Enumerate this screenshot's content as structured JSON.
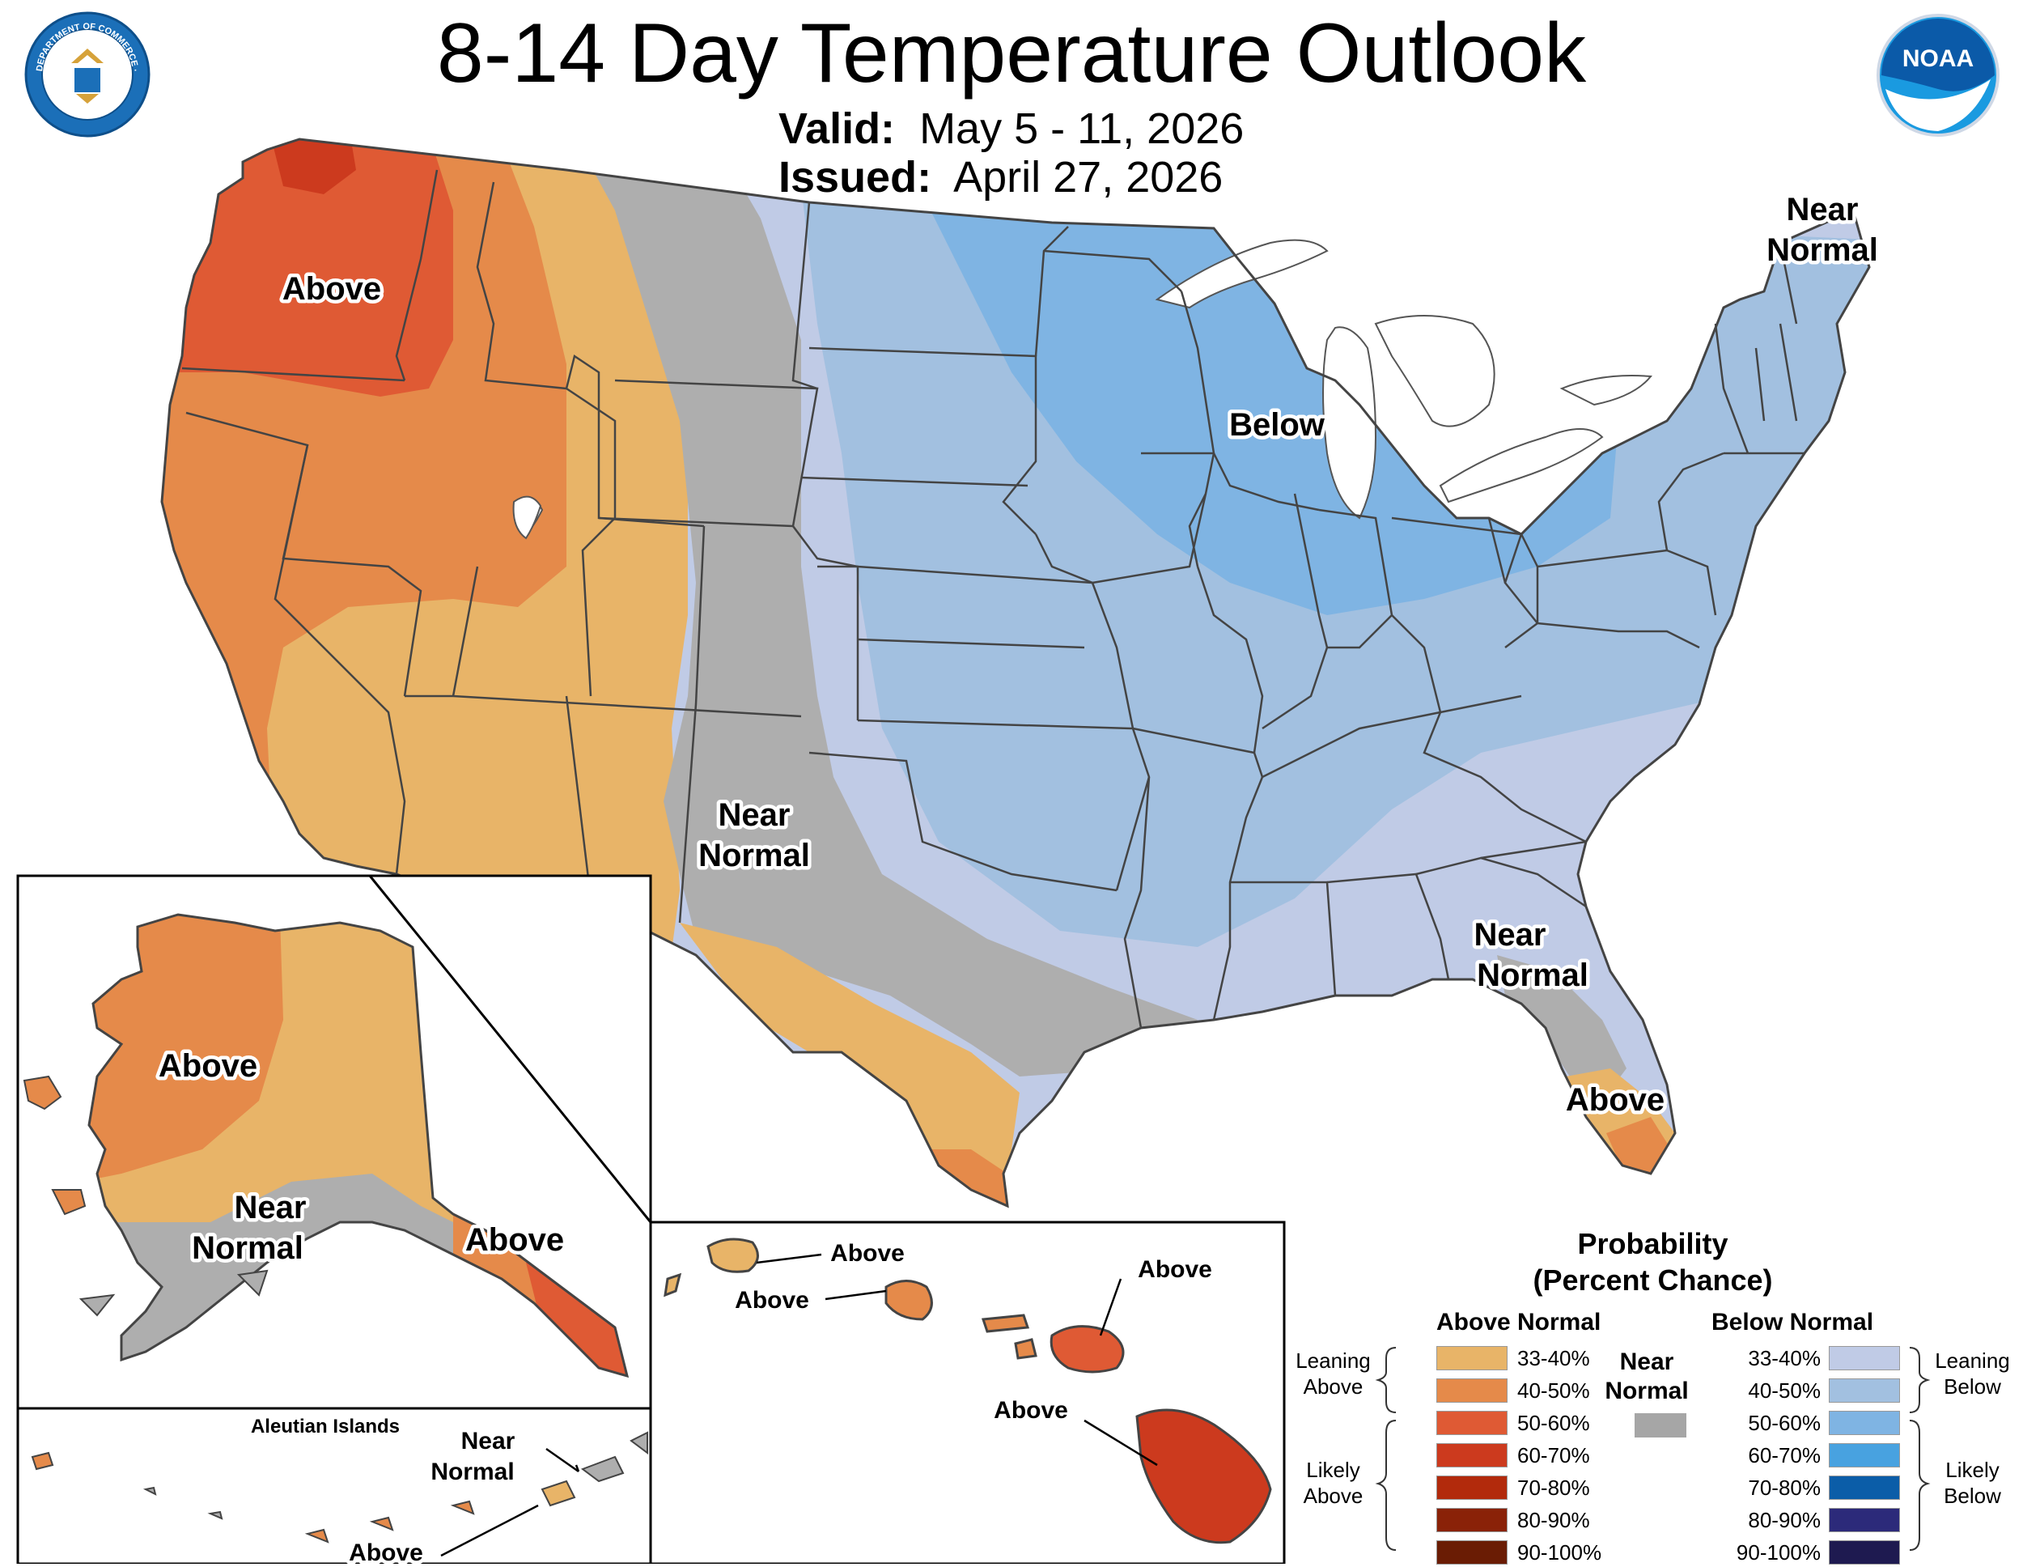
{
  "header": {
    "title": "8-14 Day Temperature Outlook",
    "valid_label": "Valid:",
    "valid_value": "May 5 - 11, 2026",
    "issued_label": "Issued:",
    "issued_value": "April 27, 2026"
  },
  "logos": {
    "commerce_seal_text": "DEPARTMENT OF COMMERCE · UNITED STATES OF AMERICA",
    "noaa_text": "NOAA"
  },
  "map_labels": {
    "above_northwest": "Above",
    "below_midwest": "Below",
    "near_normal_northeast": [
      "Near",
      "Normal"
    ],
    "near_normal_plains": [
      "Near",
      "Normal"
    ],
    "near_normal_southeast": [
      "Near",
      "Normal"
    ],
    "above_florida": "Above",
    "alaska_above_west": "Above",
    "alaska_near_normal": [
      "Near",
      "Normal"
    ],
    "alaska_above_southeast": "Above",
    "aleutian_title": "Aleutian Islands",
    "aleutian_near_normal": [
      "Near",
      "Normal"
    ],
    "aleutian_above": "Above",
    "hawaii_kauai": "Above",
    "hawaii_oahu": "Above",
    "hawaii_maui": "Above",
    "hawaii_big_island": "Above"
  },
  "legend": {
    "title_line1": "Probability",
    "title_line2": "(Percent Chance)",
    "above_header": "Above Normal",
    "below_header": "Below Normal",
    "near_normal_line1": "Near",
    "near_normal_line2": "Normal",
    "near_normal_color": "#a6a6a6",
    "leaning_above": [
      "Leaning",
      "Above"
    ],
    "likely_above": [
      "Likely",
      "Above"
    ],
    "leaning_below": [
      "Leaning",
      "Below"
    ],
    "likely_below": [
      "Likely",
      "Below"
    ],
    "above_bins": [
      {
        "label": "33-40%",
        "color": "#e8b468"
      },
      {
        "label": "40-50%",
        "color": "#e58a4a"
      },
      {
        "label": "50-60%",
        "color": "#df5a34"
      },
      {
        "label": "60-70%",
        "color": "#cc3a1e"
      },
      {
        "label": "70-80%",
        "color": "#b22a0c"
      },
      {
        "label": "80-90%",
        "color": "#8a2208"
      },
      {
        "label": "90-100%",
        "color": "#6a1c04"
      }
    ],
    "below_bins": [
      {
        "label": "33-40%",
        "color": "#c0cbe6"
      },
      {
        "label": "40-50%",
        "color": "#a2c0e0"
      },
      {
        "label": "50-60%",
        "color": "#7fb4e3"
      },
      {
        "label": "60-70%",
        "color": "#48a2e0"
      },
      {
        "label": "70-80%",
        "color": "#0b5da8"
      },
      {
        "label": "80-90%",
        "color": "#2c2a7a"
      },
      {
        "label": "90-100%",
        "color": "#1e1a50"
      }
    ]
  },
  "colors": {
    "above_33": "#e8b468",
    "above_40": "#e58a4a",
    "above_50": "#df5a34",
    "above_60": "#cc3a1e",
    "near_normal": "#aeaeae",
    "below_33": "#c0cbe6",
    "below_40": "#a2c0e0",
    "below_50": "#7fb4e3"
  }
}
